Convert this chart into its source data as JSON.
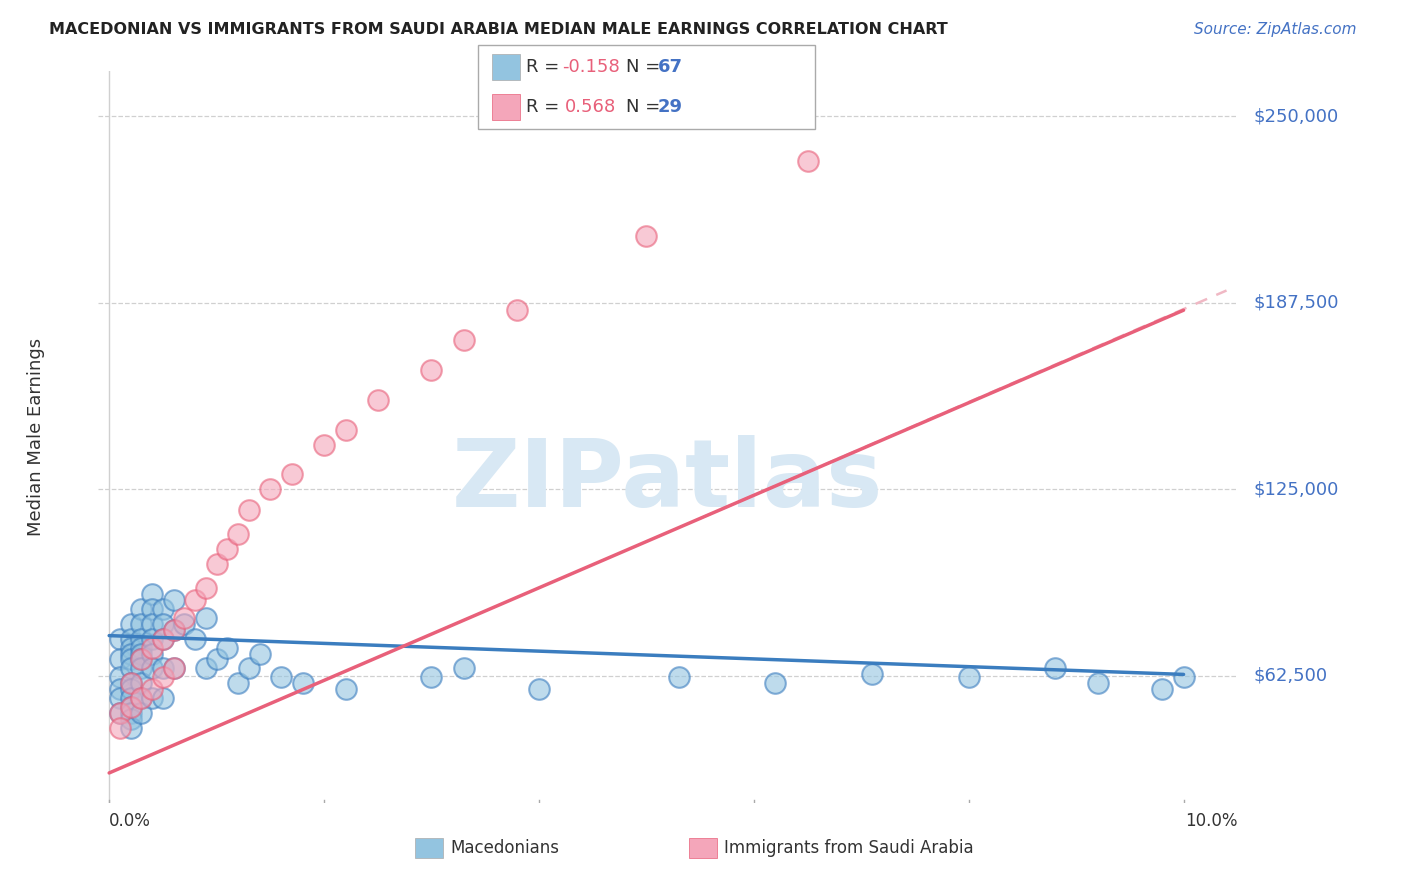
{
  "title": "MACEDONIAN VS IMMIGRANTS FROM SAUDI ARABIA MEDIAN MALE EARNINGS CORRELATION CHART",
  "source": "Source: ZipAtlas.com",
  "ylabel": "Median Male Earnings",
  "ytick_labels": [
    "$250,000",
    "$187,500",
    "$125,000",
    "$62,500"
  ],
  "ytick_values": [
    250000,
    187500,
    125000,
    62500
  ],
  "ylim": [
    20000,
    265000
  ],
  "xlim": [
    -0.001,
    0.105
  ],
  "xmin_pct": "0.0%",
  "xmax_pct": "10.0%",
  "r1": "-0.158",
  "n1": "67",
  "r2": "0.568",
  "n2": "29",
  "color_blue": "#93c4e0",
  "color_pink": "#f4a6ba",
  "color_blue_line": "#3b7dbf",
  "color_pink_line": "#e8607a",
  "color_dashed": "#f0b8c4",
  "color_ytick": "#4472c4",
  "color_grid": "#d0d0d0",
  "background_color": "#ffffff",
  "watermark": "ZIPatlas",
  "mac_x": [
    0.001,
    0.001,
    0.001,
    0.001,
    0.001,
    0.001,
    0.002,
    0.002,
    0.002,
    0.002,
    0.002,
    0.002,
    0.002,
    0.002,
    0.002,
    0.002,
    0.002,
    0.002,
    0.002,
    0.003,
    0.003,
    0.003,
    0.003,
    0.003,
    0.003,
    0.003,
    0.003,
    0.003,
    0.003,
    0.004,
    0.004,
    0.004,
    0.004,
    0.004,
    0.004,
    0.004,
    0.005,
    0.005,
    0.005,
    0.005,
    0.005,
    0.006,
    0.006,
    0.006,
    0.007,
    0.008,
    0.009,
    0.009,
    0.01,
    0.011,
    0.012,
    0.013,
    0.014,
    0.016,
    0.018,
    0.022,
    0.03,
    0.033,
    0.04,
    0.053,
    0.062,
    0.071,
    0.08,
    0.088,
    0.092,
    0.098,
    0.1
  ],
  "mac_y": [
    75000,
    68000,
    62000,
    58000,
    55000,
    50000,
    80000,
    75000,
    72000,
    70000,
    68000,
    65000,
    60000,
    58000,
    55000,
    52000,
    50000,
    48000,
    45000,
    85000,
    80000,
    75000,
    72000,
    70000,
    68000,
    65000,
    60000,
    55000,
    50000,
    90000,
    85000,
    80000,
    75000,
    70000,
    65000,
    55000,
    85000,
    80000,
    75000,
    65000,
    55000,
    88000,
    78000,
    65000,
    80000,
    75000,
    82000,
    65000,
    68000,
    72000,
    60000,
    65000,
    70000,
    62000,
    60000,
    58000,
    62000,
    65000,
    58000,
    62000,
    60000,
    63000,
    62000,
    65000,
    60000,
    58000,
    62000
  ],
  "sau_x": [
    0.001,
    0.001,
    0.002,
    0.002,
    0.003,
    0.003,
    0.004,
    0.004,
    0.005,
    0.005,
    0.006,
    0.006,
    0.007,
    0.008,
    0.009,
    0.01,
    0.011,
    0.012,
    0.013,
    0.015,
    0.017,
    0.02,
    0.022,
    0.025,
    0.03,
    0.033,
    0.038,
    0.05,
    0.065
  ],
  "sau_y": [
    50000,
    45000,
    60000,
    52000,
    68000,
    55000,
    72000,
    58000,
    75000,
    62000,
    78000,
    65000,
    82000,
    88000,
    92000,
    100000,
    105000,
    110000,
    118000,
    125000,
    130000,
    140000,
    145000,
    155000,
    165000,
    175000,
    185000,
    210000,
    235000
  ],
  "blue_line_x": [
    0.0,
    0.1
  ],
  "blue_line_y": [
    76000,
    63000
  ],
  "pink_line_x": [
    0.0,
    0.1
  ],
  "pink_line_y": [
    30000,
    185000
  ],
  "dash_line_x": [
    0.055,
    0.104
  ],
  "dash_line_y": [
    115250,
    191600
  ]
}
